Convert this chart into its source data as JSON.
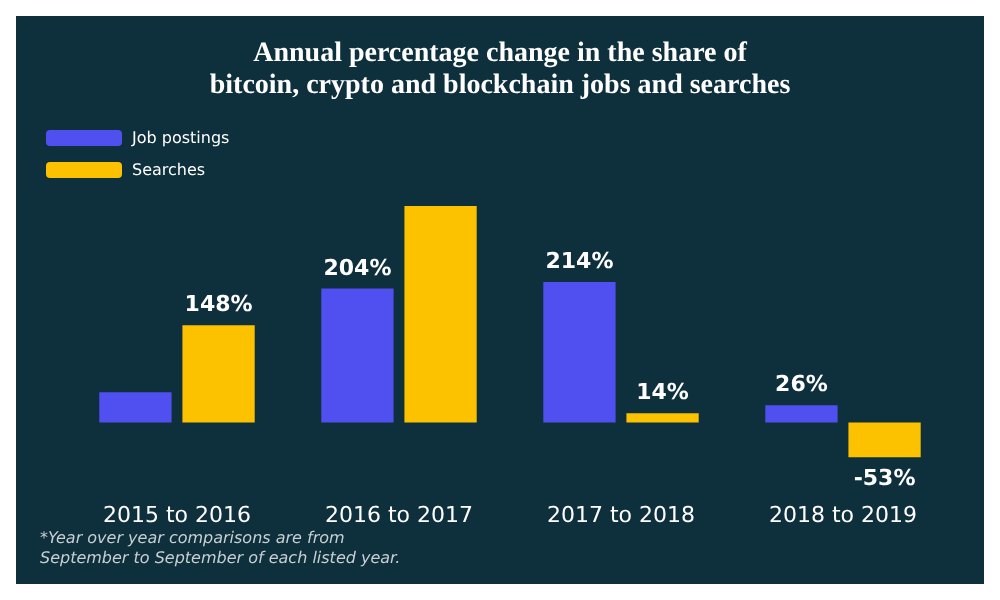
{
  "chart_data": {
    "type": "bar",
    "title": "Annual percentage change in the share of\nbitcoin, crypto and blockchain jobs and searches",
    "categories": [
      "2015 to 2016",
      "2016 to 2017",
      "2017 to 2018",
      "2018 to 2019"
    ],
    "series": [
      {
        "name": "Job postings",
        "color": "#5050f0",
        "values": [
          46,
          204,
          214,
          26
        ],
        "value_labels": [
          null,
          "204%",
          "214%",
          "26%"
        ]
      },
      {
        "name": "Searches",
        "color": "#fcc200",
        "values": [
          148,
          330,
          14,
          -53
        ],
        "value_labels": [
          "148%",
          null,
          "14%",
          "-53%"
        ]
      }
    ],
    "legend": "top left",
    "annotations": [
      "*Year over year comparisons are from\nSeptember to September of each listed year."
    ]
  }
}
